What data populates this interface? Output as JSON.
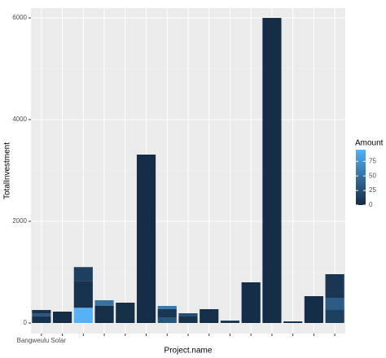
{
  "chart_data": {
    "type": "stacked-bar",
    "x_label": "Project.name",
    "y_label": "TotalInvestment",
    "categories": [
      "Bangweulu Solar",
      null,
      null,
      null,
      null,
      null,
      null,
      null,
      null,
      null,
      null,
      null,
      null,
      null,
      null
    ],
    "bars": [
      [
        {
          "value": 130,
          "amount": 5
        },
        {
          "value": 60,
          "amount": 30
        },
        {
          "value": 66,
          "amount": 5
        }
      ],
      [
        {
          "value": 224,
          "amount": 2
        }
      ],
      [
        {
          "value": 300,
          "amount": 95
        },
        {
          "value": 528,
          "amount": 5
        },
        {
          "value": 272,
          "amount": 15
        }
      ],
      [
        {
          "value": 336,
          "amount": 3
        },
        {
          "value": 112,
          "amount": 50
        }
      ],
      [
        {
          "value": 400,
          "amount": 3
        }
      ],
      [
        {
          "value": 3312,
          "amount": 1
        }
      ],
      [
        {
          "value": 112,
          "amount": 30
        },
        {
          "value": 160,
          "amount": 8
        },
        {
          "value": 64,
          "amount": 55
        }
      ],
      [
        {
          "value": 128,
          "amount": 5
        },
        {
          "value": 64,
          "amount": 25
        }
      ],
      [
        {
          "value": 272,
          "amount": 3
        }
      ],
      [
        {
          "value": 48,
          "amount": 10
        }
      ],
      [
        {
          "value": 800,
          "amount": 2
        }
      ],
      [
        {
          "value": 6000,
          "amount": 1
        }
      ],
      [
        {
          "value": 32,
          "amount": 5
        }
      ],
      [
        {
          "value": 528,
          "amount": 2
        }
      ],
      [
        {
          "value": 256,
          "amount": 15
        },
        {
          "value": 240,
          "amount": 35
        },
        {
          "value": 464,
          "amount": 8
        }
      ]
    ],
    "ylim": [
      -208,
      6192
    ],
    "yticks": [
      0,
      2000,
      4000,
      6000
    ],
    "grid": true,
    "color_scale": {
      "title": "Amount",
      "low": "#132B43",
      "high": "#56B1F7",
      "limits": [
        0,
        95
      ],
      "ticks": [
        0,
        25,
        50,
        75
      ]
    }
  }
}
